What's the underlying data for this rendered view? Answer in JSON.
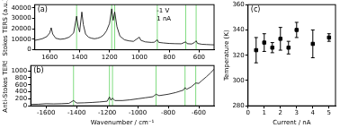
{
  "chart_data": [
    {
      "type": "line",
      "title": "(a)",
      "annotations": [
        "-1 V",
        "1 nA"
      ],
      "y_label": "Stokes TERS (a.u.)",
      "color": "#000000",
      "grid": false,
      "xlim": [
        1700,
        500
      ],
      "xticks": [
        1600,
        1400,
        1200,
        1000,
        800,
        600
      ],
      "ylim": [
        0,
        43000
      ],
      "yticks": [
        0,
        10000,
        20000,
        30000,
        40000
      ],
      "reference_lines": [
        1420,
        1185,
        1165,
        880,
        690,
        620
      ],
      "x": [
        1700,
        1680,
        1650,
        1620,
        1600,
        1590,
        1580,
        1560,
        1530,
        1500,
        1470,
        1440,
        1420,
        1410,
        1400,
        1385,
        1375,
        1360,
        1340,
        1320,
        1300,
        1280,
        1260,
        1240,
        1220,
        1200,
        1185,
        1175,
        1165,
        1150,
        1130,
        1100,
        1070,
        1040,
        1000,
        990,
        960,
        920,
        900,
        880,
        870,
        840,
        800,
        760,
        720,
        690,
        680,
        650,
        630,
        620,
        610,
        580,
        550,
        520,
        500
      ],
      "values": [
        9000,
        9500,
        10500,
        12500,
        16000,
        21000,
        15000,
        11000,
        10000,
        10500,
        12000,
        16000,
        32000,
        22000,
        17000,
        36000,
        24000,
        15000,
        12000,
        11000,
        10500,
        11000,
        12000,
        14000,
        18000,
        25000,
        39000,
        28000,
        36000,
        22000,
        13000,
        9500,
        8500,
        8000,
        12000,
        9000,
        7500,
        7000,
        7200,
        9500,
        7000,
        6500,
        6000,
        5800,
        5700,
        7500,
        5800,
        5500,
        7000,
        8500,
        6000,
        5200,
        5000,
        4800,
        4700
      ]
    },
    {
      "type": "line",
      "title": "(b)",
      "x_label": "Wavenumber / cm⁻¹",
      "y_label": "Anti-Stokes TERS",
      "color": "#000000",
      "grid": false,
      "xlim": [
        -1700,
        -500
      ],
      "xticks": [
        -1600,
        -1400,
        -1200,
        -1000,
        -800,
        -600
      ],
      "ylim": [
        0,
        1150
      ],
      "yticks": [
        0,
        200,
        400,
        600,
        800,
        1000
      ],
      "reference_lines": [
        -1420,
        -1185,
        -1165,
        -880,
        -690,
        -620
      ],
      "x": [
        -1700,
        -1650,
        -1600,
        -1550,
        -1500,
        -1450,
        -1420,
        -1400,
        -1350,
        -1300,
        -1250,
        -1200,
        -1185,
        -1175,
        -1165,
        -1150,
        -1100,
        -1050,
        -1000,
        -950,
        -900,
        -880,
        -860,
        -800,
        -750,
        -700,
        -690,
        -680,
        -650,
        -620,
        -600,
        -580,
        -550,
        -520,
        -500
      ],
      "values": [
        40,
        45,
        60,
        55,
        60,
        70,
        150,
        80,
        85,
        95,
        110,
        130,
        250,
        160,
        220,
        150,
        150,
        170,
        200,
        230,
        260,
        330,
        290,
        330,
        380,
        450,
        520,
        470,
        540,
        650,
        640,
        720,
        830,
        950,
        1050
      ]
    },
    {
      "type": "scatter",
      "title": "(c)",
      "marker": "square",
      "color": "#000000",
      "grid": false,
      "x_label": "Current / nA",
      "y_label": "Temperature (K)",
      "xlim": [
        0,
        5.4
      ],
      "xticks": [
        0,
        1,
        2,
        3,
        4,
        5
      ],
      "ylim": [
        280,
        360
      ],
      "yticks": [
        280,
        300,
        320,
        340,
        360
      ],
      "x": [
        0.5,
        1,
        1.5,
        2,
        2.5,
        3,
        4,
        5
      ],
      "values": [
        324,
        330,
        326,
        333,
        326,
        340,
        329,
        334
      ],
      "errors": [
        10,
        7,
        4,
        9,
        5,
        6,
        11,
        3
      ]
    }
  ]
}
